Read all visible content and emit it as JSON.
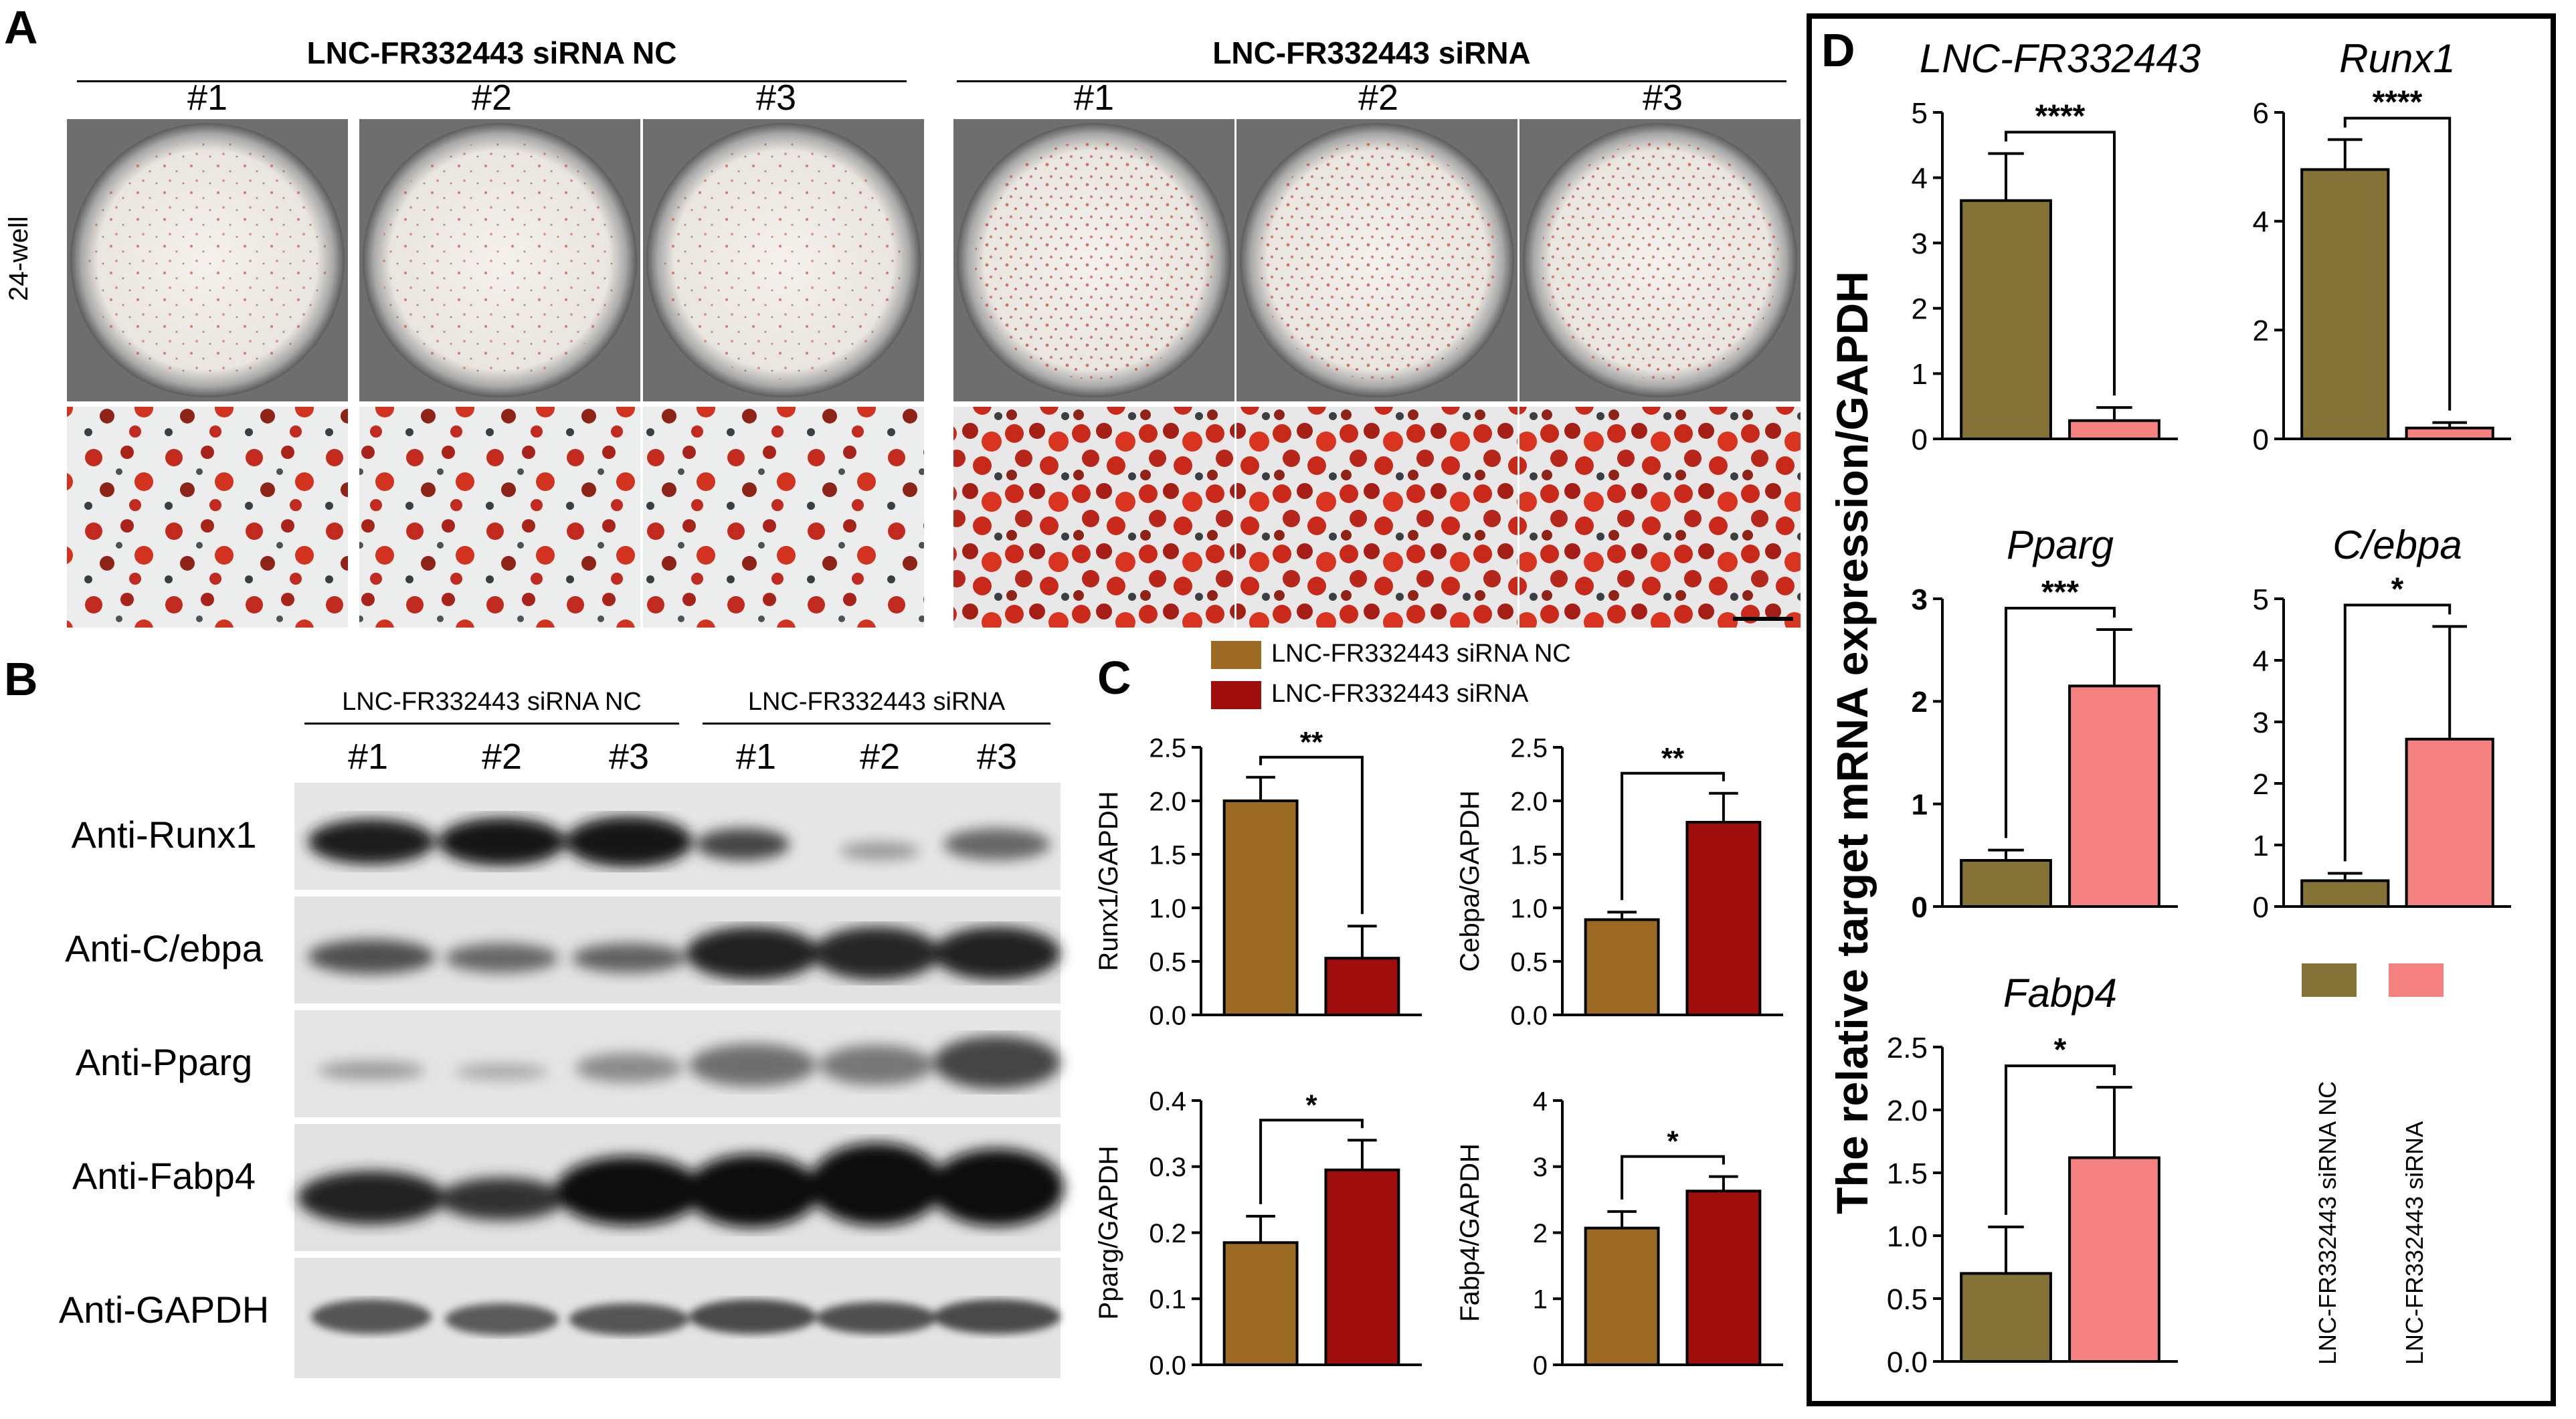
{
  "panelA": {
    "letter": "A",
    "group_nc": "LNC-FR332443 siRNA NC",
    "group_si": "LNC-FR332443 siRNA",
    "replicates": [
      "#1",
      "#2",
      "#3"
    ],
    "row_label": "24-well"
  },
  "panelB": {
    "letter": "B",
    "group_nc": "LNC-FR332443 siRNA NC",
    "group_si": "LNC-FR332443 siRNA",
    "lanes": [
      "#1",
      "#2",
      "#3",
      "#1",
      "#2",
      "#3"
    ],
    "blots": [
      "Anti-Runx1",
      "Anti-C/ebpa",
      "Anti-Pparg",
      "Anti-Fabp4",
      "Anti-GAPDH"
    ]
  },
  "panelC": {
    "letter": "C",
    "legend": [
      "LNC-FR332443 siRNA NC",
      "LNC-FR332443 siRNA"
    ],
    "colors": {
      "nc": "#9c6a22",
      "si": "#a00d0d"
    }
  },
  "panelD": {
    "letter": "D",
    "ylabel": "The relative target mRNA expression/GAPDH",
    "legend": [
      "LNC-FR332443 siRNA NC",
      "LNC-FR332443 siRNA"
    ],
    "colors": {
      "nc": "#857236",
      "si": "#f58080"
    }
  },
  "chart_data": [
    {
      "type": "bar",
      "panel": "C",
      "categories": [
        "LNC-FR332443 siRNA NC",
        "LNC-FR332443 siRNA"
      ],
      "values": [
        2.0,
        0.53
      ],
      "errors": [
        0.22,
        0.3
      ],
      "ylabel": "Runx1/GAPDH",
      "ylim": [
        0,
        2.5
      ],
      "yticks": [
        "0.0",
        "0.5",
        "1.0",
        "1.5",
        "2.0",
        "2.5"
      ],
      "sig": "**"
    },
    {
      "type": "bar",
      "panel": "C",
      "categories": [
        "LNC-FR332443 siRNA NC",
        "LNC-FR332443 siRNA"
      ],
      "values": [
        0.89,
        1.8
      ],
      "errors": [
        0.07,
        0.27
      ],
      "ylabel": "Cebpa/GAPDH",
      "ylim": [
        0,
        2.5
      ],
      "yticks": [
        "0.0",
        "0.5",
        "1.0",
        "1.5",
        "2.0",
        "2.5"
      ],
      "sig": "**"
    },
    {
      "type": "bar",
      "panel": "C",
      "categories": [
        "LNC-FR332443 siRNA NC",
        "LNC-FR332443 siRNA"
      ],
      "values": [
        0.185,
        0.295
      ],
      "errors": [
        0.04,
        0.045
      ],
      "ylabel": "Pparg/GAPDH",
      "ylim": [
        0,
        0.4
      ],
      "yticks": [
        "0.0",
        "0.1",
        "0.2",
        "0.3",
        "0.4"
      ],
      "sig": "*"
    },
    {
      "type": "bar",
      "panel": "C",
      "categories": [
        "LNC-FR332443 siRNA NC",
        "LNC-FR332443 siRNA"
      ],
      "values": [
        2.07,
        2.63
      ],
      "errors": [
        0.25,
        0.22
      ],
      "ylabel": "Fabp4/GAPDH",
      "ylim": [
        0,
        4
      ],
      "yticks": [
        "0",
        "1",
        "2",
        "3",
        "4"
      ],
      "sig": "*"
    },
    {
      "type": "bar",
      "panel": "D",
      "title": "LNC-FR332443",
      "categories": [
        "LNC-FR332443 siRNA NC",
        "LNC-FR332443 siRNA"
      ],
      "values": [
        3.65,
        0.28
      ],
      "errors": [
        0.72,
        0.2
      ],
      "ylim": [
        0,
        5
      ],
      "yticks": [
        "0",
        "1",
        "2",
        "3",
        "4",
        "5"
      ],
      "sig": "****"
    },
    {
      "type": "bar",
      "panel": "D",
      "title": "Runx1",
      "categories": [
        "LNC-FR332443 siRNA NC",
        "LNC-FR332443 siRNA"
      ],
      "values": [
        4.95,
        0.2
      ],
      "errors": [
        0.55,
        0.1
      ],
      "ylim": [
        0,
        6
      ],
      "yticks": [
        "0",
        "2",
        "4",
        "6"
      ],
      "sig": "****"
    },
    {
      "type": "bar",
      "panel": "D",
      "title": "Pparg",
      "categories": [
        "LNC-FR332443 siRNA NC",
        "LNC-FR332443 siRNA"
      ],
      "values": [
        0.45,
        2.15
      ],
      "errors": [
        0.1,
        0.55
      ],
      "ylim": [
        0,
        3
      ],
      "yticks": [
        "0",
        "1",
        "2",
        "3"
      ],
      "sig": "***"
    },
    {
      "type": "bar",
      "panel": "D",
      "title": "C/ebpa",
      "categories": [
        "LNC-FR332443 siRNA NC",
        "LNC-FR332443 siRNA"
      ],
      "values": [
        0.42,
        2.72
      ],
      "errors": [
        0.12,
        1.83
      ],
      "ylim": [
        0,
        5
      ],
      "yticks": [
        "0",
        "1",
        "2",
        "3",
        "4",
        "5"
      ],
      "sig": "*"
    },
    {
      "type": "bar",
      "panel": "D",
      "title": "Fabp4",
      "categories": [
        "LNC-FR332443 siRNA NC",
        "LNC-FR332443 siRNA"
      ],
      "values": [
        0.7,
        1.62
      ],
      "errors": [
        0.37,
        0.56
      ],
      "ylim": [
        0,
        2.5
      ],
      "yticks": [
        "0.0",
        "0.5",
        "1.0",
        "1.5",
        "2.0",
        "2.5"
      ],
      "sig": "*"
    }
  ]
}
